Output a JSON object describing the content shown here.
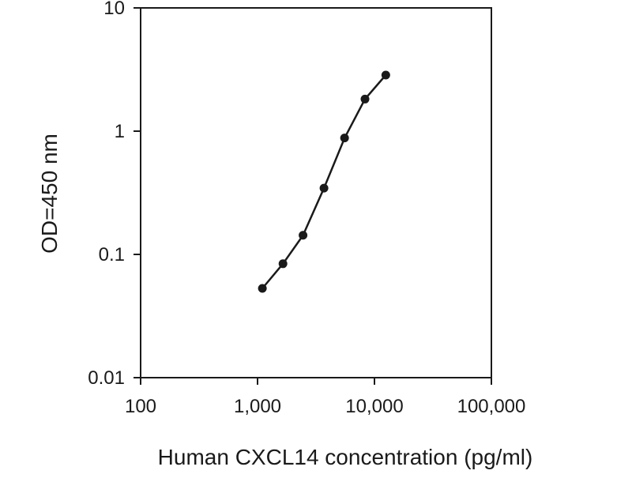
{
  "chart_data": {
    "type": "line",
    "title": "",
    "xlabel": "Human CXCL14 concentration (pg/ml)",
    "ylabel": "OD=450 nm",
    "xscale": "log",
    "yscale": "log",
    "xlim": [
      100,
      100000
    ],
    "ylim": [
      0.01,
      10
    ],
    "xticks": [
      100,
      1000,
      10000,
      100000
    ],
    "xtick_labels": [
      "100",
      "1,000",
      "10,000",
      "100,000"
    ],
    "yticks": [
      0.01,
      0.1,
      1,
      10
    ],
    "ytick_labels": [
      "0.01",
      "0.1",
      "1",
      "10"
    ],
    "grid": false,
    "legend": "none",
    "colors": {
      "line": "#1a1a1a",
      "marker": "#1a1a1a",
      "frame": "#1a1a1a"
    },
    "series": [
      {
        "x": [
          1100,
          1650,
          2450,
          3700,
          5550,
          8300,
          12500
        ],
        "y": [
          0.053,
          0.084,
          0.143,
          0.345,
          0.88,
          1.82,
          2.85
        ]
      }
    ]
  }
}
